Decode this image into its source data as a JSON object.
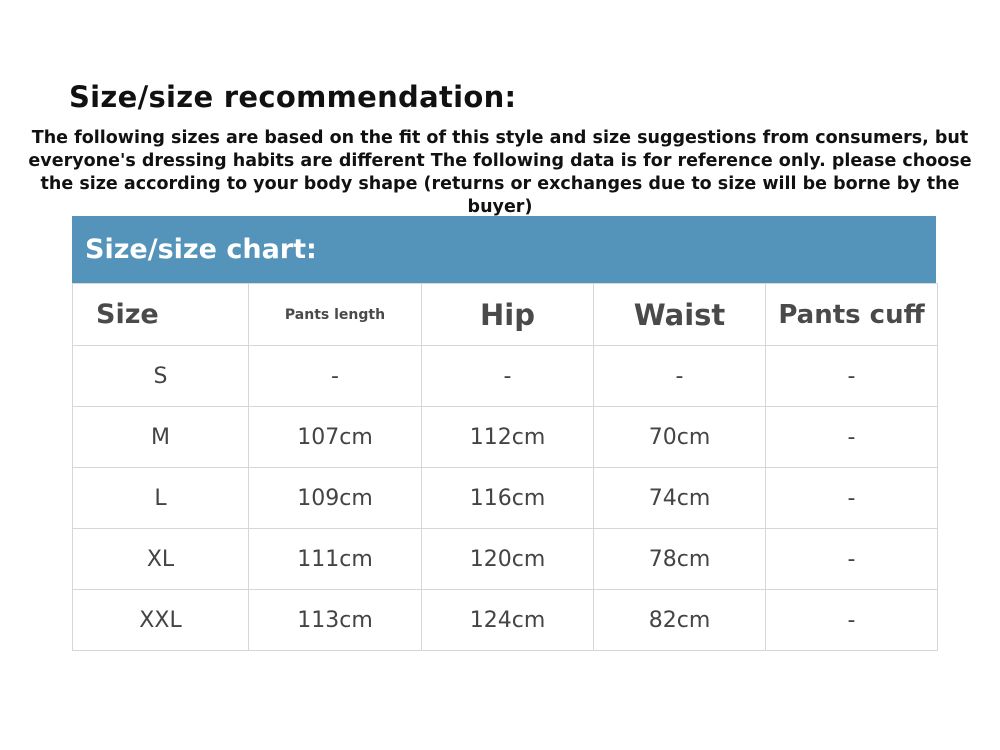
{
  "title": "Size/size recommendation:",
  "description": "The following sizes are based on the fit of this style and size suggestions from consumers, but everyone's dressing habits are different The following data is for reference only. please choose the size according to your body shape (returns or exchanges due to size will be borne by the buyer)",
  "chart": {
    "header": "Size/size chart:",
    "header_color": "#5494bb",
    "columns": [
      "Size",
      "Pants length",
      "Hip",
      "Waist",
      "Pants cuff"
    ],
    "rows": [
      [
        "S",
        "-",
        "-",
        "-",
        "-"
      ],
      [
        "M",
        "107cm",
        "112cm",
        "70cm",
        "-"
      ],
      [
        "L",
        "109cm",
        "116cm",
        "74cm",
        "-"
      ],
      [
        "XL",
        "111cm",
        "120cm",
        "78cm",
        "-"
      ],
      [
        "XXL",
        "113cm",
        "124cm",
        "82cm",
        "-"
      ]
    ]
  }
}
